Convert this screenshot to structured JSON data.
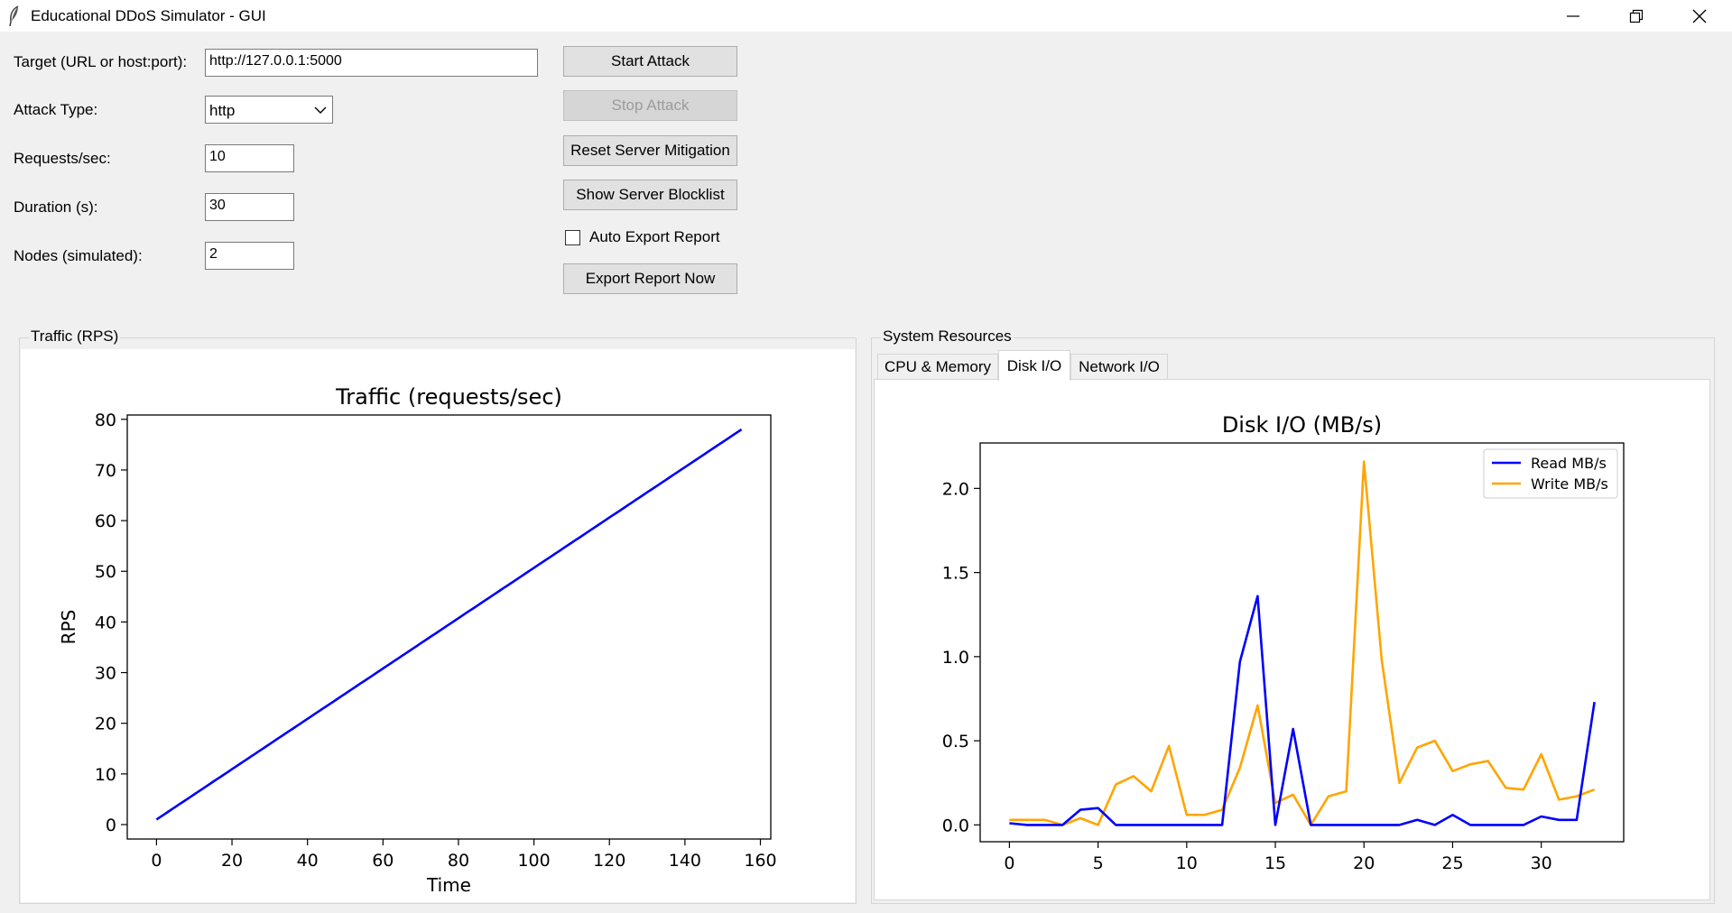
{
  "window": {
    "title": "Educational DDoS Simulator - GUI",
    "controls": [
      "minimize-icon",
      "restore-icon",
      "close-icon"
    ]
  },
  "form": {
    "target_label": "Target (URL or host:port):",
    "target_value": "http://127.0.0.1:5000",
    "attack_type_label": "Attack Type:",
    "attack_type_value": "http",
    "rps_label": "Requests/sec:",
    "rps_value": "10",
    "duration_label": "Duration (s):",
    "duration_value": "30",
    "nodes_label": "Nodes (simulated):",
    "nodes_value": "2"
  },
  "actions": {
    "start": "Start Attack",
    "stop": "Stop Attack",
    "reset": "Reset Server Mitigation",
    "blocklist": "Show Server Blocklist",
    "auto_export": "Auto Export Report",
    "auto_export_checked": false,
    "export_now": "Export Report Now"
  },
  "traffic_panel": {
    "title": "Traffic (RPS)"
  },
  "resources_panel": {
    "title": "System Resources",
    "tabs": [
      "CPU & Memory",
      "Disk I/O",
      "Network I/O"
    ],
    "active_tab": "Disk I/O"
  },
  "colors": {
    "read": "#0000ff",
    "write": "#ffa500",
    "traffic": "#0000ff"
  },
  "chart_data": [
    {
      "type": "line",
      "title": "Traffic (requests/sec)",
      "xlabel": "Time",
      "ylabel": "RPS",
      "xlim": [
        -7.75,
        162.75
      ],
      "ylim": [
        -2.85,
        80.85
      ],
      "xticks": [
        0,
        20,
        40,
        60,
        80,
        100,
        120,
        140,
        160
      ],
      "yticks": [
        0,
        10,
        20,
        30,
        40,
        50,
        60,
        70,
        80
      ],
      "series": [
        {
          "x": [
            0,
            155
          ],
          "values": [
            1,
            78
          ]
        }
      ]
    },
    {
      "type": "line",
      "title": "Disk I/O (MB/s)",
      "xlabel": "",
      "ylabel": "",
      "xlim": [
        -1.65,
        34.65
      ],
      "ylim": [
        -0.1,
        2.27
      ],
      "xticks": [
        0,
        5,
        10,
        15,
        20,
        25,
        30
      ],
      "yticks": [
        "0.0",
        "0.5",
        "1.0",
        "1.5",
        "2.0"
      ],
      "legend": "top-right",
      "x": [
        0,
        1,
        2,
        3,
        4,
        5,
        6,
        7,
        8,
        9,
        10,
        11,
        12,
        13,
        14,
        15,
        16,
        17,
        18,
        19,
        20,
        21,
        22,
        23,
        24,
        25,
        26,
        27,
        28,
        29,
        30,
        31,
        32,
        33
      ],
      "series": [
        {
          "name": "Read MB/s",
          "values": [
            0.01,
            0,
            0,
            0,
            0.09,
            0.1,
            0,
            0,
            0,
            0,
            0,
            0,
            0,
            0.97,
            1.36,
            0,
            0.57,
            0,
            0,
            0,
            0,
            0,
            0,
            0.03,
            0,
            0.06,
            0,
            0,
            0,
            0,
            0.05,
            0.03,
            0.03,
            0.73
          ]
        },
        {
          "name": "Write MB/s",
          "values": [
            0.03,
            0.03,
            0.03,
            0,
            0.04,
            0,
            0.24,
            0.29,
            0.2,
            0.47,
            0.06,
            0.06,
            0.09,
            0.34,
            0.71,
            0.13,
            0.18,
            0,
            0.17,
            0.2,
            2.16,
            0.98,
            0.25,
            0.46,
            0.5,
            0.32,
            0.36,
            0.38,
            0.22,
            0.21,
            0.42,
            0.15,
            0.17,
            0.21
          ]
        }
      ]
    }
  ]
}
